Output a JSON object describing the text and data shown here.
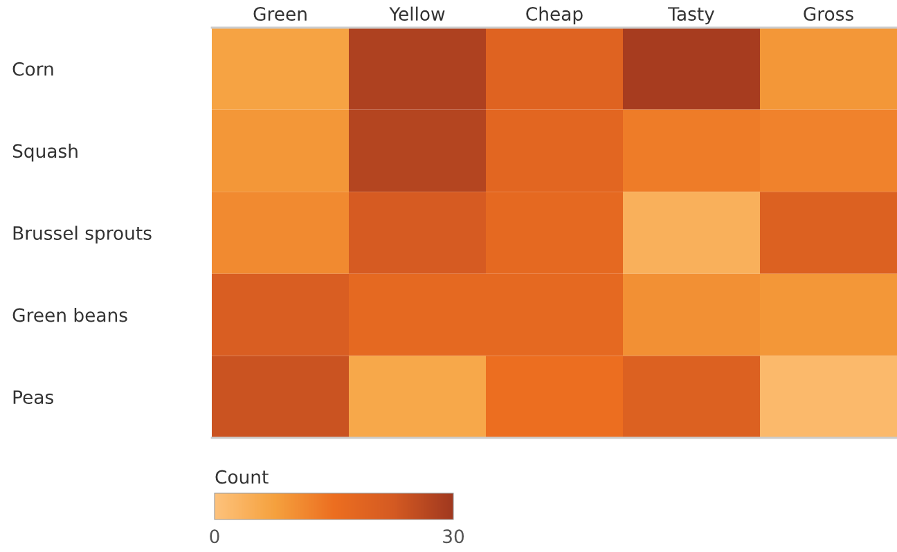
{
  "chart_data": {
    "type": "heatmap",
    "categories": [
      "Green",
      "Yellow",
      "Cheap",
      "Tasty",
      "Gross"
    ],
    "y_categories": [
      "Corn",
      "Squash",
      "Brussel sprouts",
      "Green beans",
      "Peas"
    ],
    "cells": [
      [
        7,
        28,
        19,
        29,
        9
      ],
      [
        9,
        27,
        18,
        13,
        12
      ],
      [
        11,
        22,
        17,
        4,
        20
      ],
      [
        21,
        17,
        17,
        10,
        9
      ],
      [
        24,
        6,
        15,
        20,
        2
      ]
    ],
    "clabel": "Count",
    "clim": [
      0,
      30
    ],
    "cticks": [
      0,
      30
    ]
  }
}
